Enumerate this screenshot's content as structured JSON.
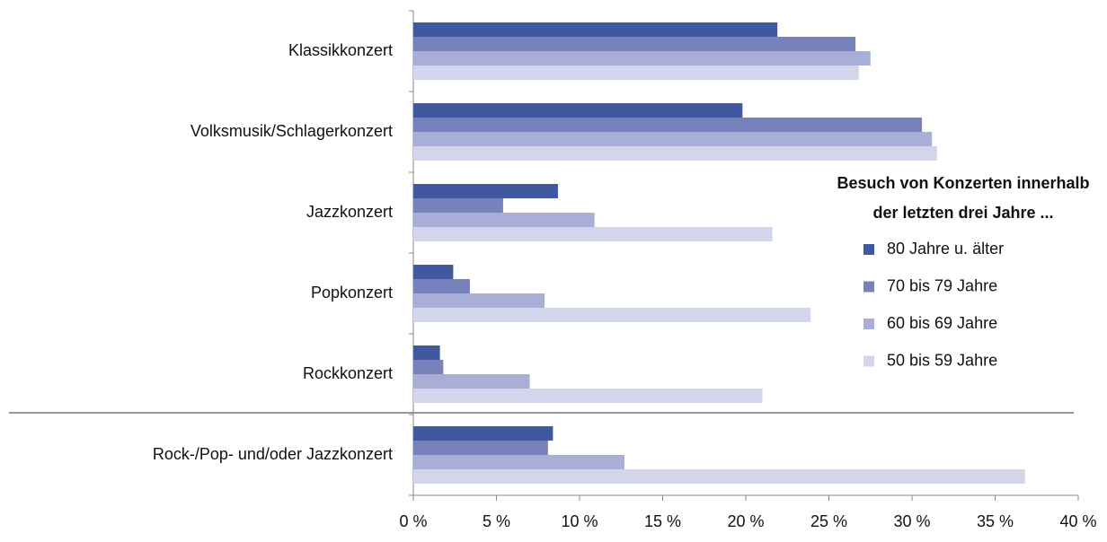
{
  "chart_data": {
    "type": "bar",
    "orientation": "horizontal",
    "categories": [
      "Klassikkonzert",
      "Volksmusik/Schlagerkonzert",
      "Jazzkonzert",
      "Popkonzert",
      "Rockkonzert",
      "Rock-/Pop- und/oder Jazzkonzert"
    ],
    "series": [
      {
        "name": "80 Jahre u. älter",
        "color": "#3f58a0",
        "values": [
          21.9,
          19.8,
          8.7,
          2.4,
          1.6,
          8.4
        ]
      },
      {
        "name": "70 bis 79 Jahre",
        "color": "#7782bd",
        "values": [
          26.6,
          30.6,
          5.4,
          3.4,
          1.8,
          8.1
        ]
      },
      {
        "name": "60 bis 69 Jahre",
        "color": "#a8aed6",
        "values": [
          27.5,
          31.2,
          10.9,
          7.9,
          7.0,
          12.7
        ]
      },
      {
        "name": "50 bis 59 Jahre",
        "color": "#d3d6ea",
        "values": [
          26.8,
          31.5,
          21.6,
          23.9,
          21.0,
          36.8
        ]
      }
    ],
    "legend_title": [
      "Besuch von Konzerten innerhalb",
      "der letzten drei Jahre ..."
    ],
    "xlim": [
      0,
      40
    ],
    "xticks": [
      {
        "value": 0,
        "label": "0 %"
      },
      {
        "value": 5,
        "label": "5 %"
      },
      {
        "value": 10,
        "label": "10 %"
      },
      {
        "value": 15,
        "label": "15 %"
      },
      {
        "value": 20,
        "label": "20 %"
      },
      {
        "value": 25,
        "label": "25 %"
      },
      {
        "value": 30,
        "label": "30 %"
      },
      {
        "value": 35,
        "label": "35 %"
      },
      {
        "value": 40,
        "label": "40 %"
      }
    ],
    "grid": false
  }
}
